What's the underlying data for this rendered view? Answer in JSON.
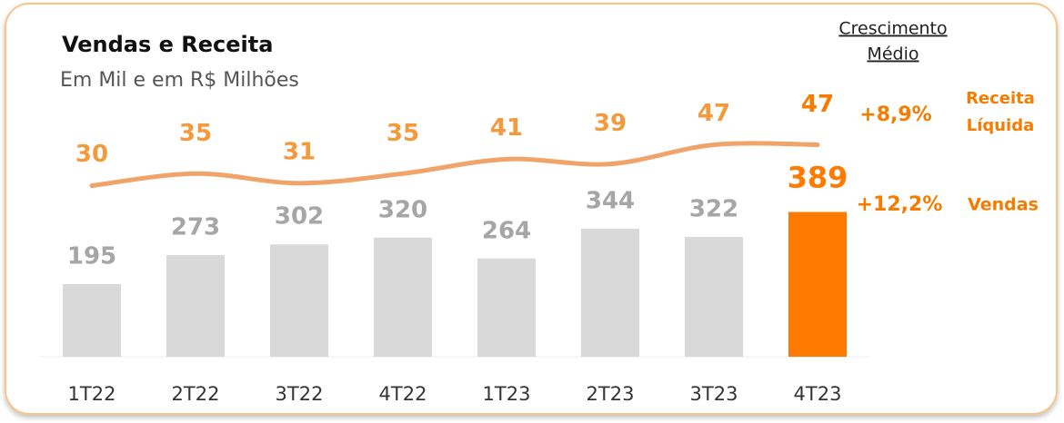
{
  "chart_data": {
    "type": "bar_line",
    "title": "Vendas e Receita",
    "subtitle": "Em Mil e em R$ Milhões",
    "categories": [
      "1T22",
      "2T22",
      "3T22",
      "4T22",
      "1T23",
      "2T23",
      "3T23",
      "4T23"
    ],
    "series": [
      {
        "name": "Vendas",
        "type": "bar",
        "color": "#d9d9d9",
        "colors": [
          "#d9d9d9",
          "#d9d9d9",
          "#d9d9d9",
          "#d9d9d9",
          "#d9d9d9",
          "#d9d9d9",
          "#d9d9d9",
          "#ff7a00"
        ],
        "values": [
          195,
          273,
          302,
          320,
          264,
          344,
          322,
          389
        ]
      },
      {
        "name": "Receita Líquida",
        "type": "line",
        "axis": "y2",
        "color": "#f0a469",
        "values": [
          30,
          35,
          31,
          35,
          41,
          39,
          47,
          47
        ]
      }
    ],
    "ylim": [
      0,
      400
    ],
    "y2lim": [
      0,
      60
    ],
    "annotations": {
      "header": [
        "Crescimento",
        "Médio"
      ],
      "line_growth": "+8,9%",
      "line_label": [
        "Receita",
        "Líquida"
      ],
      "bar_growth": "+12,2%",
      "bar_label": "Vendas"
    }
  }
}
